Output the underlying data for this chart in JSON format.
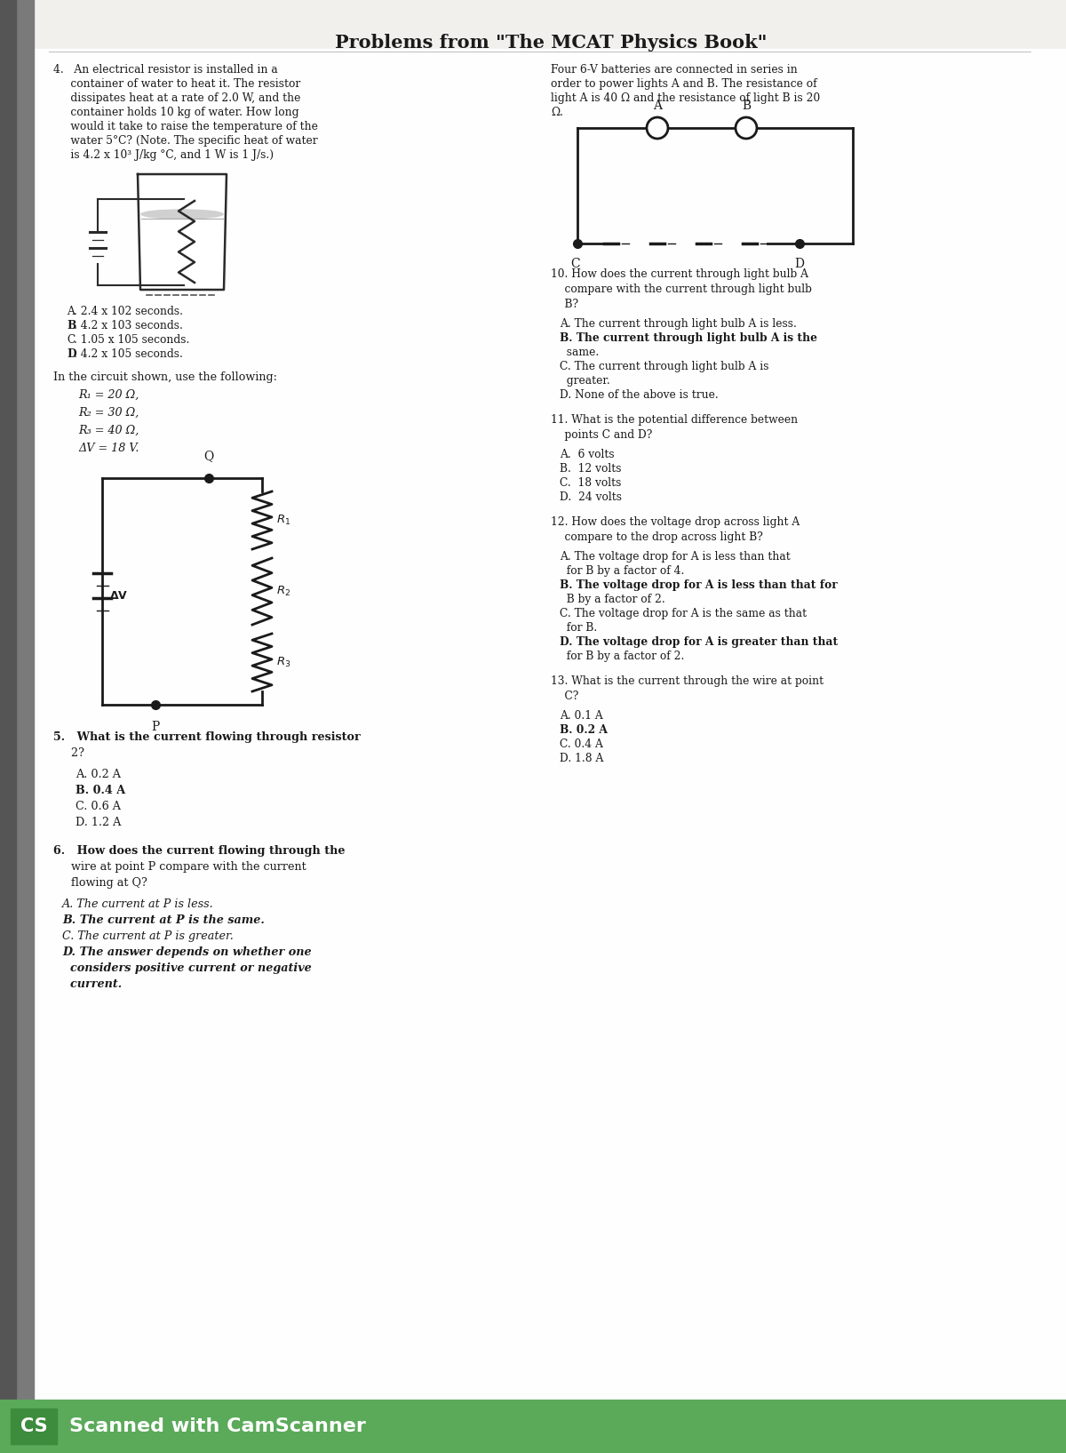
{
  "title": "Problems from \"The MCAT Physics Book\"",
  "bg_color": "#f2f0ed",
  "text_color": "#1a1a1a",
  "q4_text_lines": [
    "4.   An electrical resistor is installed in a",
    "     container of water to heat it. The resistor",
    "     dissipates heat at a rate of 2.0 W, and the",
    "     container holds 10 kg of water. How long",
    "     would it take to raise the temperature of the",
    "     water 5°C? (Note. The specific heat of water",
    "     is 4.2 x 10³ J/kg °C, and 1 W is 1 J/s.)"
  ],
  "q4_answers": [
    [
      "A",
      ". 2.4 x 10",
      "2",
      " seconds."
    ],
    [
      "B",
      ". 4.2 x 10",
      "3",
      " seconds."
    ],
    [
      "C",
      ". 1.05 x 10",
      "5",
      " seconds."
    ],
    [
      "D",
      ". 4.2 x 10",
      "5",
      " seconds."
    ]
  ],
  "circuit_intro": "In the circuit shown, use the following:",
  "circuit_vars": [
    "R₁ = 20 Ω,",
    "R₂ = 30 Ω,",
    "R₃ = 40 Ω,",
    "ΔV = 18 V."
  ],
  "q5_lines": [
    "5.   What is the current flowing through resistor",
    "     2?"
  ],
  "q5_answers": [
    "A. 0.2 A",
    "B. 0.4 A",
    "C. 0.6 A",
    "D. 1.2 A"
  ],
  "q6_lines": [
    "6.   How does the current flowing through the",
    "     wire at point P compare with the current",
    "     flowing at Q?"
  ],
  "q6_answers": [
    [
      "A",
      ". The current at P is less."
    ],
    [
      "B",
      ". The current at P is the same."
    ],
    [
      "C",
      ". The current at P is greater."
    ],
    [
      "D",
      ". The answer depends on whether one"
    ],
    [
      "",
      "  considers positive current or negative"
    ],
    [
      "",
      "  current."
    ]
  ],
  "right_intro_lines": [
    "Four 6-V batteries are connected in series in",
    "order to power lights A and B. The resistance of",
    "light A is 40 Ω and the resistance of light B is 20",
    "Ω."
  ],
  "q10_lines": [
    "10. How does the current through light bulb A",
    "    compare with the current through light bulb",
    "    B?"
  ],
  "q10_answers": [
    [
      "A",
      ". The current through light bulb A is less."
    ],
    [
      "B",
      ". The current through light bulb A is the"
    ],
    [
      "",
      "  same."
    ],
    [
      "C",
      ". The current through light bulb A is"
    ],
    [
      "",
      "  greater."
    ],
    [
      "D",
      ". None of the above is true."
    ]
  ],
  "q11_lines": [
    "11. What is the potential difference between",
    "    points C and D?"
  ],
  "q11_answers": [
    [
      "A",
      ". 6 volts"
    ],
    [
      "C",
      ". 18 volts"
    ],
    [
      "D",
      ". 24 volts"
    ],
    [
      "B",
      ". 12 volts"
    ]
  ],
  "q12_lines": [
    "12. How does the voltage drop across light A",
    "    compare to the drop across light B?"
  ],
  "q12_answers": [
    [
      "A",
      ". The voltage drop for A is less than that"
    ],
    [
      "",
      "  for B by a factor of 4."
    ],
    [
      "B",
      ". The voltage drop for A is less than that for"
    ],
    [
      "",
      "  B by a factor of 2."
    ],
    [
      "C",
      ". The voltage drop for A is the same as that"
    ],
    [
      "",
      "  for B."
    ],
    [
      "D",
      ". The voltage drop for A is greater than that"
    ],
    [
      "",
      "  for B by a factor of 2."
    ]
  ],
  "q13_lines": [
    "13. What is the current through the wire at point",
    "    C?"
  ],
  "q13_answers": [
    [
      "A",
      ". 0.1 A"
    ],
    [
      "B",
      ". 0.2 A"
    ],
    [
      "C",
      ". 0.4 A"
    ],
    [
      "D",
      ". 1.8 A"
    ]
  ],
  "footer_bg": "#5aaa5a",
  "footer_text": "Scanned with CamScanner"
}
